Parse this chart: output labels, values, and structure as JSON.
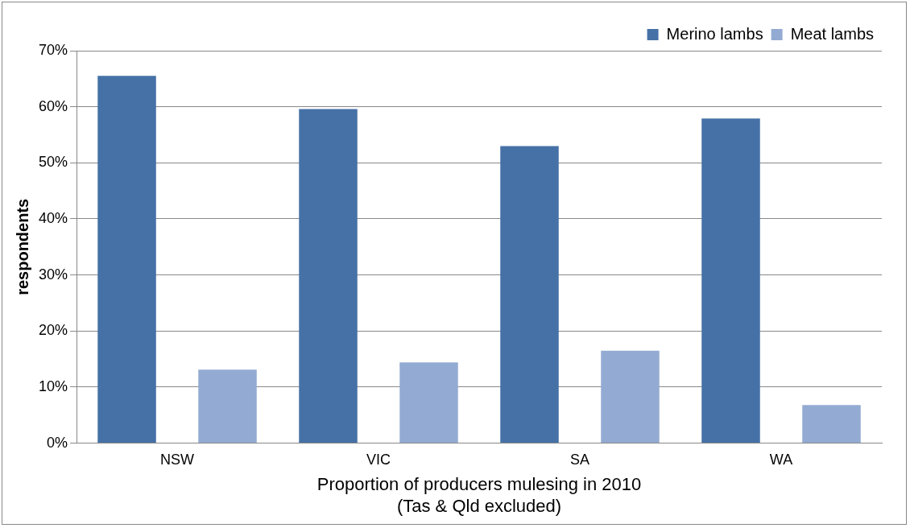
{
  "chart_data": {
    "type": "bar",
    "categories": [
      "NSW",
      "VIC",
      "SA",
      "WA"
    ],
    "series": [
      {
        "name": "Merino lambs",
        "color": "#4571a6",
        "values": [
          65.5,
          59.6,
          53.0,
          57.9
        ]
      },
      {
        "name": "Meat lambs",
        "color": "#93abd2",
        "values": [
          13.1,
          14.4,
          16.5,
          6.8
        ]
      }
    ],
    "ylim": [
      0,
      70
    ],
    "yticks": [
      {
        "value": 0,
        "label": "0%"
      },
      {
        "value": 10,
        "label": "10%"
      },
      {
        "value": 20,
        "label": "20%"
      },
      {
        "value": 30,
        "label": "30%"
      },
      {
        "value": 40,
        "label": "40%"
      },
      {
        "value": 50,
        "label": "50%"
      },
      {
        "value": 60,
        "label": "60%"
      },
      {
        "value": 70,
        "label": "70%"
      }
    ],
    "ylabel": "respondents",
    "xlabel": "Proportion of producers mulesing in 2010\n(Tas & Qld excluded)",
    "grid": "y",
    "legend": "top right"
  }
}
